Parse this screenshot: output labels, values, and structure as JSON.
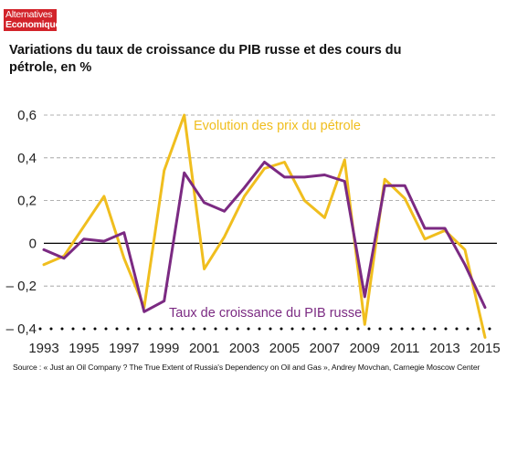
{
  "logo": {
    "line1": "Alternatives",
    "line2": "Economiques"
  },
  "title": "Variations du taux de croissance du PIB russe et des cours du pétrole, en %",
  "source": "Source : « Just an Oil Company ? The True Extent of Russia's Dependency on Oil and Gas », Andrey Movchan, Carnegie Moscow Center",
  "colors": {
    "oil": "#f0be1e",
    "gdp": "#7b2a82",
    "grid": "#999999",
    "axis": "#000000"
  },
  "chart_data": {
    "type": "line",
    "title": "Variations du taux de croissance du PIB russe et des cours du pétrole, en %",
    "xlabel": "",
    "ylabel": "",
    "xlim": [
      1993,
      2015
    ],
    "ylim": [
      -0.4,
      0.6
    ],
    "x_ticks": [
      1993,
      1995,
      1997,
      1999,
      2001,
      2003,
      2005,
      2007,
      2009,
      2011,
      2013,
      2015
    ],
    "y_ticks": [
      {
        "value": 0.6,
        "label": "0,6"
      },
      {
        "value": 0.4,
        "label": "0,4"
      },
      {
        "value": 0.2,
        "label": "0,2"
      },
      {
        "value": 0,
        "label": "0"
      },
      {
        "value": -0.2,
        "label": "– 0,2"
      },
      {
        "value": -0.4,
        "label": "– 0,4"
      }
    ],
    "grid": "horizontal dashed",
    "series": [
      {
        "name": "Evolution des prix du pétrole",
        "color": "#f0be1e",
        "x": [
          1993,
          1994,
          1995,
          1996,
          1997,
          1998,
          1999,
          2000,
          2001,
          2002,
          2003,
          2004,
          2005,
          2006,
          2007,
          2008,
          2009,
          2010,
          2011,
          2012,
          2013,
          2014,
          2015
        ],
        "values": [
          -0.1,
          -0.06,
          0.08,
          0.22,
          -0.07,
          -0.3,
          0.34,
          0.6,
          -0.12,
          0.03,
          0.22,
          0.35,
          0.38,
          0.2,
          0.12,
          0.39,
          -0.38,
          0.3,
          0.21,
          0.02,
          0.06,
          -0.03,
          -0.44
        ]
      },
      {
        "name": "Taux de croissance du PIB russe",
        "color": "#7b2a82",
        "x": [
          1993,
          1994,
          1995,
          1996,
          1997,
          1998,
          1999,
          2000,
          2001,
          2002,
          2003,
          2004,
          2005,
          2006,
          2007,
          2008,
          2009,
          2010,
          2011,
          2012,
          2013,
          2014,
          2015
        ],
        "values": [
          -0.03,
          -0.07,
          0.02,
          0.01,
          0.05,
          -0.32,
          -0.27,
          0.33,
          0.19,
          0.15,
          0.26,
          0.38,
          0.31,
          0.31,
          0.32,
          0.29,
          -0.25,
          0.27,
          0.27,
          0.07,
          0.07,
          -0.1,
          -0.3
        ]
      }
    ],
    "annotations": [
      {
        "text": "Evolution des prix du pétrole",
        "series": 0
      },
      {
        "text": "Taux de croissance du PIB russe",
        "series": 1
      }
    ]
  }
}
